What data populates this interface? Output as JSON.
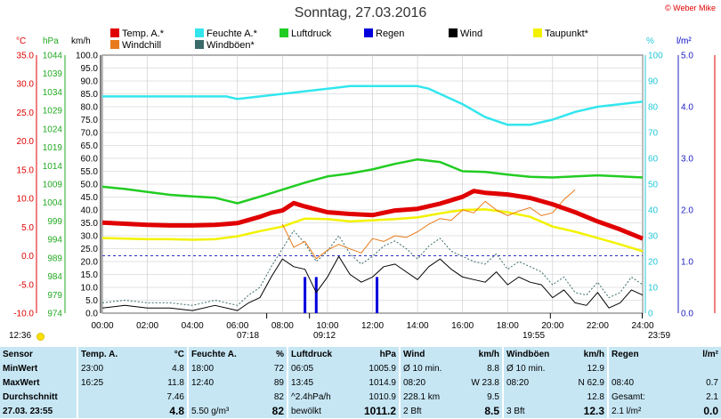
{
  "header": {
    "title": "Sonntag, 27.03.2016",
    "copyright": "© Weber Mike"
  },
  "legend": [
    {
      "label": "Temp. A.*",
      "color": "#e00000"
    },
    {
      "label": "Feuchte A.*",
      "color": "#33e6ee"
    },
    {
      "label": "Luftdruck",
      "color": "#22cc22"
    },
    {
      "label": "Regen",
      "color": "#0000dd"
    },
    {
      "label": "Wind",
      "color": "#000000"
    },
    {
      "label": "Taupunkt*",
      "color": "#f2f200"
    },
    {
      "label": "Windchill",
      "color": "#e87a1a"
    },
    {
      "label": "Windböen*",
      "color": "#3a6a6a"
    }
  ],
  "axis_units": {
    "temp": "°C",
    "press": "hPa",
    "wind": "km/h",
    "hum": "%",
    "rain": "l/m²"
  },
  "sun": {
    "sunrise_clock": "12:36",
    "civil_rise": "07:18",
    "rise": "09:12",
    "set": "19:55",
    "civil_set": "23:59"
  },
  "chart_data": {
    "type": "line",
    "title": "Sonntag, 27.03.2016",
    "x_unit": "hours",
    "xlim": [
      0,
      24
    ],
    "x_ticks": [
      "00:00",
      "02:00",
      "04:00",
      "06:00",
      "08:00",
      "10:00",
      "12:00",
      "14:00",
      "16:00",
      "18:00",
      "20:00",
      "22:00",
      "24:00"
    ],
    "axes": {
      "temp": {
        "label": "°C",
        "ylim": [
          -10,
          35
        ],
        "ticks": [
          "35.0",
          "30.0",
          "25.0",
          "20.0",
          "15.0",
          "10.0",
          "5.0",
          "0.0",
          "-5.0",
          "-10.0"
        ]
      },
      "press": {
        "label": "hPa",
        "ylim": [
          974,
          1044
        ],
        "ticks": [
          "1044",
          "1039",
          "1034",
          "1029",
          "1024",
          "1019",
          "1014",
          "1009",
          "1004",
          "999",
          "994",
          "989",
          "984",
          "979",
          "974"
        ]
      },
      "wind": {
        "label": "km/h",
        "ylim": [
          0,
          100
        ],
        "ticks": [
          "100.0",
          "95.0",
          "90.0",
          "85.0",
          "80.0",
          "75.0",
          "70.0",
          "65.0",
          "60.0",
          "55.0",
          "50.0",
          "45.0",
          "40.0",
          "35.0",
          "30.0",
          "25.0",
          "20.0",
          "15.0",
          "10.0",
          "5.0",
          "0.0"
        ]
      },
      "hum": {
        "label": "%",
        "ylim": [
          0,
          100
        ],
        "ticks": [
          "100",
          "90",
          "80",
          "70",
          "60",
          "50",
          "40",
          "30",
          "20",
          "10",
          "0"
        ]
      },
      "rain": {
        "label": "l/m²",
        "ylim": [
          0,
          5
        ],
        "ticks": [
          "5.0",
          "4.0",
          "3.0",
          "2.0",
          "1.0",
          "0.0"
        ]
      }
    },
    "series": [
      {
        "name": "Temp. A.*",
        "axis": "temp",
        "x": [
          0,
          1,
          2,
          3,
          4,
          5,
          6,
          7,
          7.5,
          8,
          8.5,
          9,
          10,
          11,
          12,
          13,
          14,
          15,
          16,
          16.5,
          17,
          18,
          19,
          20,
          21,
          22,
          23,
          24
        ],
        "y": [
          5.8,
          5.6,
          5.4,
          5.3,
          5.3,
          5.4,
          5.7,
          6.8,
          7.5,
          7.9,
          9.2,
          8.6,
          7.6,
          7.3,
          7.1,
          7.9,
          8.2,
          9.1,
          10.3,
          11.3,
          11.0,
          10.7,
          10.1,
          9.0,
          7.6,
          6.0,
          4.6,
          3.0
        ]
      },
      {
        "name": "Feuchte A.*",
        "axis": "hum",
        "x": [
          0,
          2,
          4,
          5.5,
          6,
          7,
          8,
          9,
          10,
          11,
          12,
          13,
          14,
          14.5,
          15,
          16,
          17,
          18,
          19,
          20,
          21,
          22,
          23,
          24
        ],
        "y": [
          84,
          84,
          84,
          84,
          83,
          84,
          85,
          86,
          87,
          88,
          88,
          88,
          88,
          87,
          85,
          81,
          76,
          73,
          73,
          75,
          78,
          80,
          81,
          82
        ]
      },
      {
        "name": "Luftdruck",
        "axis": "press",
        "x": [
          0,
          1,
          2,
          3,
          4,
          5,
          6,
          7,
          8,
          9,
          10,
          11,
          12,
          13,
          14,
          15,
          16,
          17,
          18,
          19,
          20,
          21,
          22,
          23,
          24
        ],
        "y": [
          1008.3,
          1007.7,
          1006.9,
          1006.1,
          1005.7,
          1005.3,
          1003.8,
          1005.6,
          1007.5,
          1009.4,
          1011.1,
          1011.9,
          1013.0,
          1014.5,
          1015.7,
          1015.0,
          1012.5,
          1012.3,
          1011.6,
          1011.0,
          1010.8,
          1011.1,
          1011.4,
          1011.1,
          1010.8
        ]
      },
      {
        "name": "Taupunkt*",
        "axis": "temp",
        "x": [
          0,
          1,
          2,
          3,
          4,
          5,
          6,
          7,
          8,
          9,
          10,
          11,
          12,
          13,
          14,
          15,
          16,
          17,
          18,
          19,
          20,
          21,
          22,
          23,
          24
        ],
        "y": [
          3.1,
          3.0,
          2.9,
          2.9,
          2.8,
          2.9,
          3.4,
          4.3,
          5.1,
          6.5,
          6.4,
          6.0,
          6.2,
          6.4,
          6.7,
          7.4,
          8.0,
          8.1,
          7.6,
          6.8,
          5.1,
          4.2,
          3.1,
          2.0,
          0.8
        ]
      },
      {
        "name": "Windchill",
        "axis": "temp",
        "x": [
          8,
          8.5,
          9,
          9.5,
          10,
          10.5,
          11,
          11.5,
          12,
          12.5,
          13,
          13.5,
          14,
          14.5,
          15,
          15.5,
          16,
          16.5,
          17,
          17.5,
          18,
          18.5,
          19,
          19.5,
          20,
          20.5,
          21
        ],
        "y": [
          5.5,
          1.5,
          2.5,
          -0.5,
          1.0,
          2.0,
          1.2,
          0.5,
          3.0,
          2.5,
          3.5,
          3.2,
          4.2,
          5.5,
          6.5,
          6.2,
          8.0,
          7.5,
          9.5,
          8.0,
          7.0,
          7.8,
          8.4,
          7.0,
          7.5,
          9.8,
          11.5
        ]
      },
      {
        "name": "Wind",
        "axis": "wind",
        "x": [
          0,
          1,
          2,
          3,
          4,
          5,
          6,
          6.5,
          7,
          7.5,
          8,
          8.5,
          9,
          9.5,
          10,
          10.5,
          11,
          11.5,
          12,
          12.5,
          13,
          13.5,
          14,
          14.5,
          15,
          15.5,
          16,
          16.5,
          17,
          17.5,
          18,
          18.5,
          19,
          19.5,
          20,
          20.5,
          21,
          21.5,
          22,
          22.5,
          23,
          23.5,
          24
        ],
        "y": [
          2,
          3,
          2,
          2,
          1,
          3,
          1,
          4,
          6,
          14,
          21,
          18,
          17,
          8,
          14,
          22,
          15,
          12,
          14,
          18,
          19,
          16,
          13,
          18,
          21,
          17,
          14,
          13,
          12,
          16,
          11,
          14,
          12,
          11,
          6,
          9,
          4,
          3,
          8,
          2,
          4,
          9,
          7
        ]
      },
      {
        "name": "Windböen*",
        "axis": "wind",
        "x": [
          0,
          1,
          2,
          3,
          4,
          5,
          6,
          6.5,
          7,
          7.5,
          8,
          8.5,
          9,
          9.5,
          10,
          10.5,
          11,
          11.5,
          12,
          12.5,
          13,
          13.5,
          14,
          14.5,
          15,
          15.5,
          16,
          16.5,
          17,
          17.5,
          18,
          18.5,
          19,
          19.5,
          20,
          20.5,
          21,
          21.5,
          22,
          22.5,
          23,
          23.5,
          24
        ],
        "y": [
          4,
          5,
          4,
          4,
          3,
          5,
          3,
          7,
          10,
          18,
          25,
          32,
          27,
          20,
          24,
          30,
          23,
          19,
          22,
          26,
          28,
          25,
          21,
          26,
          29,
          24,
          22,
          20,
          19,
          23,
          17,
          20,
          18,
          16,
          11,
          14,
          8,
          7,
          12,
          6,
          8,
          14,
          11
        ]
      }
    ],
    "bars": {
      "name": "Regen",
      "axis": "rain",
      "x": [
        9.0,
        9.5,
        12.2
      ],
      "values": [
        0.7,
        0.7,
        0.7
      ]
    },
    "reference_lines": [
      {
        "axis": "temp",
        "value": 0,
        "style": "dashed"
      }
    ]
  },
  "stats": {
    "headers": {
      "sensor": "Sensor",
      "temp": "Temp. A.",
      "temp_u": "°C",
      "hum": "Feuchte A.",
      "hum_u": "%",
      "press": "Luftdruck",
      "press_u": "hPa",
      "wind": "Wind",
      "wind_u": "km/h",
      "gust": "Windböen",
      "gust_u": "km/h",
      "rain": "Regen",
      "rain_u": "l/m²"
    },
    "rows": [
      {
        "label": "MinWert",
        "c": [
          "23:00",
          "4.8",
          "18:00",
          "72",
          "06:05",
          "1005.9",
          "Ø 10 min.",
          "8.8",
          "Ø 10 min.",
          "12.9",
          "",
          ""
        ]
      },
      {
        "label": "MaxWert",
        "c": [
          "16:25",
          "11.8",
          "12:40",
          "89",
          "13:45",
          "1014.9",
          "08:20",
          "W 23.8",
          "08:20",
          "N 62.9",
          "08:40",
          "0.7"
        ]
      },
      {
        "label": "Durchschnitt",
        "c": [
          "",
          "7.46",
          "",
          "82",
          "^2.4hPa/h",
          "1010.9",
          "228.1 km",
          "9.5",
          "",
          "12.8",
          "Gesamt:",
          "2.1"
        ]
      },
      {
        "label": "27.03. 23:55",
        "c": [
          "",
          "4.8",
          "5.50 g/m³",
          "82",
          "bewölkt",
          "1011.2",
          "2 Bft",
          "8.5",
          "3 Bft",
          "12.3",
          "2.1 l/m²",
          "0.0"
        ]
      }
    ]
  }
}
